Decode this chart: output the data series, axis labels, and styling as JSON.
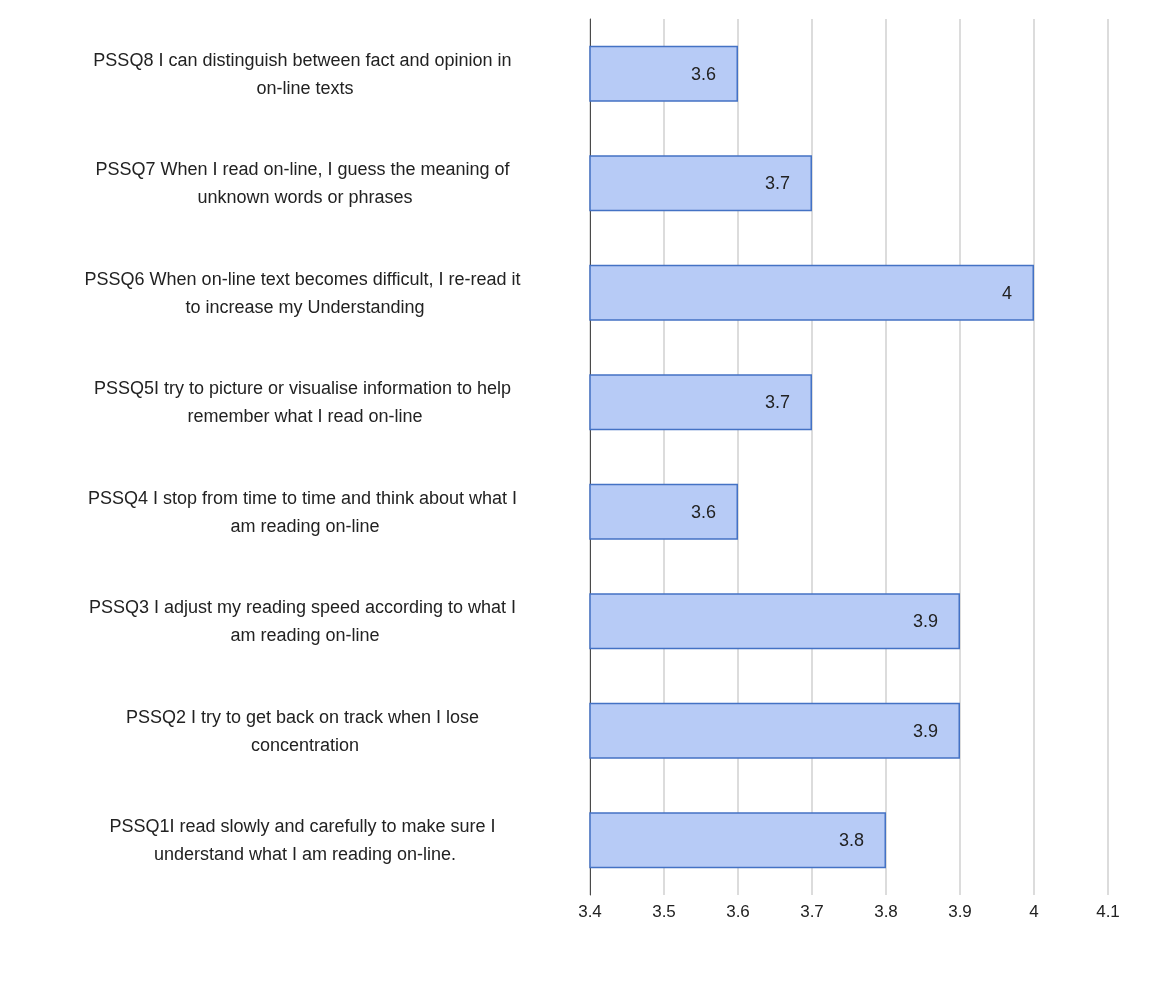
{
  "chart_data": {
    "type": "bar",
    "orientation": "horizontal",
    "categories": [
      "PSSQ8 I can distinguish between fact and opinion in on-line texts",
      "PSSQ7 When I read on-line, I guess the meaning of unknown words or phrases",
      "PSSQ6 When on-line text becomes difficult, I re-read it to increase my Understanding",
      "PSSQ5I try to picture or visualise information to help remember what I read on-line",
      "PSSQ4 I stop from time to time and think about what I am reading on-line",
      "PSSQ3 I adjust my reading speed according to what I am reading on-line",
      "PSSQ2 I try to get back on track when I lose concentration",
      "PSSQ1I read slowly and carefully to make sure I understand what I am reading on-line."
    ],
    "values": [
      3.6,
      3.7,
      4,
      3.7,
      3.6,
      3.9,
      3.9,
      3.8
    ],
    "color": "#b7cbf6",
    "xlim": [
      3.4,
      4.1
    ],
    "xticks": [
      3.4,
      3.5,
      3.6,
      3.7,
      3.8,
      3.9,
      4,
      4.1
    ],
    "grid": "x",
    "data_labels": true
  }
}
